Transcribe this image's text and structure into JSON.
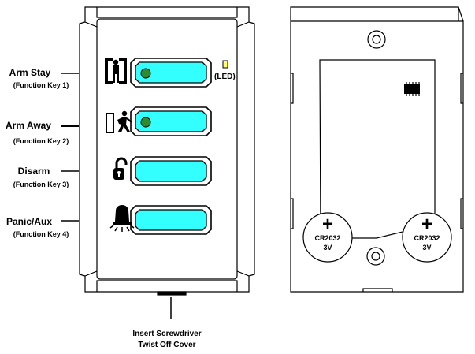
{
  "keys": [
    {
      "title": "Arm Stay",
      "subtitle": "(Function Key 1)",
      "icon": "person-standing-icon",
      "led_color": "#2e8b2e",
      "has_led": true
    },
    {
      "title": "Arm Away",
      "subtitle": "(Function Key 2)",
      "icon": "person-leaving-icon",
      "led_color": "#2e8b2e",
      "has_led": true
    },
    {
      "title": "Disarm",
      "subtitle": "(Function Key 3)",
      "icon": "unlocked-padlock-icon",
      "has_led": false
    },
    {
      "title": "Panic/Aux",
      "subtitle": "(Function Key 4)",
      "icon": "siren-icon",
      "has_led": false
    }
  ],
  "led_label": "(LED)",
  "led_indicator_color": "#ffff66",
  "button_color": "#33ffff",
  "screwdriver_note": {
    "line1": "Insert Screwdriver",
    "line2": "Twist Off Cover"
  },
  "batteries": [
    {
      "symbol": "+",
      "model": "CR2032",
      "voltage": "3V"
    },
    {
      "symbol": "+",
      "model": "CR2032",
      "voltage": "3V"
    }
  ]
}
